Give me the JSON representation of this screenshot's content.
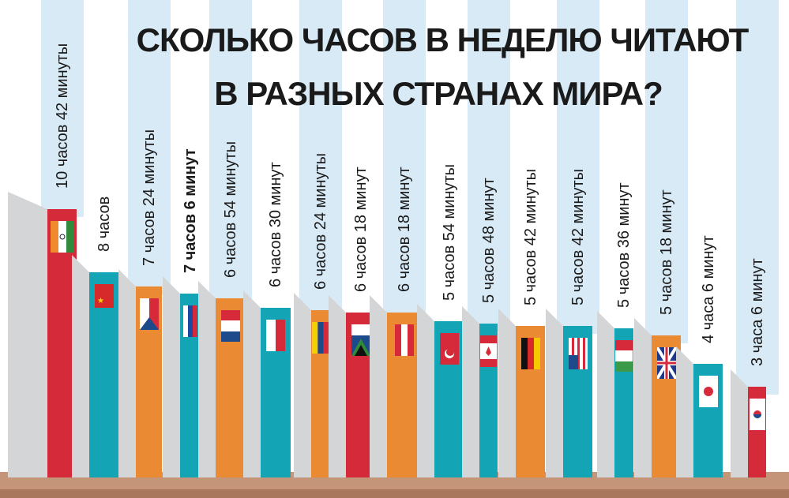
{
  "title": {
    "line1": "СКОЛЬКО ЧАСОВ В НЕДЕЛЮ ЧИТАЮТ",
    "line2": "В РАЗНЫХ СТРАНАХ МИРА?"
  },
  "colors": {
    "red": "#d42a3a",
    "teal": "#13a4b5",
    "orange": "#ea8a32",
    "cover": "#d4d5d7",
    "strip": "#d8eaf6",
    "shelf": "#c49578"
  },
  "chart_data": {
    "type": "bar",
    "title": "СКОЛЬКО ЧАСОВ В НЕДЕЛЮ ЧИТАЮТ В РАЗНЫХ СТРАНАХ МИРА?",
    "xlabel": "",
    "ylabel": "",
    "unit": "minutes per week",
    "categories": [
      "india-flag-icon",
      "china-flag-icon",
      "czech-flag-icon",
      "russia-flag-icon",
      "netherlands-flag-icon",
      "france-flag-icon",
      "venezuela-flag-icon",
      "south-africa-flag-icon",
      "austria-flag-icon",
      "turkey-flag-icon",
      "canada-flag-icon",
      "germany-flag-icon",
      "usa-flag-icon",
      "hungary-flag-icon",
      "uk-flag-icon",
      "japan-flag-icon",
      "korea-flag-icon"
    ],
    "values": [
      642,
      480,
      444,
      426,
      414,
      390,
      384,
      378,
      378,
      354,
      348,
      342,
      342,
      336,
      318,
      246,
      186
    ],
    "labels": [
      "10 часов 42 минуты",
      "8 часов",
      "7 часов 24 минуты",
      "7 часов 6 минут",
      "6 часов 54 минуты",
      "6 часов 30 минут",
      "6 часов 24 минуты",
      "6 часов 18 минут",
      "6 часов 18 минут",
      "5 часов 54 минуты",
      "5 часов 48 минут",
      "5 часов 42 минуты",
      "5 часов 42 минуты",
      "5 часов 36 минут",
      "5 часов 18 минут",
      "4 часа 6 минут",
      "3 часа 6 минут"
    ],
    "spine_colors": [
      "red",
      "teal",
      "orange",
      "teal",
      "orange",
      "teal",
      "orange",
      "red",
      "orange",
      "teal",
      "teal",
      "orange",
      "teal",
      "teal",
      "orange",
      "teal",
      "red"
    ],
    "highlighted": 3
  }
}
